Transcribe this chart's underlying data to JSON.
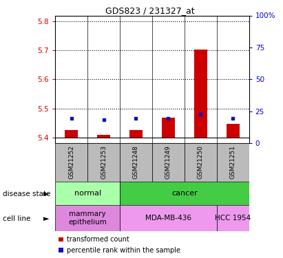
{
  "title": "GDS823 / 231327_at",
  "samples": [
    "GSM21252",
    "GSM21253",
    "GSM21248",
    "GSM21249",
    "GSM21250",
    "GSM21251"
  ],
  "transformed_counts": [
    5.425,
    5.408,
    5.425,
    5.468,
    5.703,
    5.447
  ],
  "percentile_ranks": [
    19.5,
    18.5,
    19.5,
    19.5,
    22.5,
    19.5
  ],
  "ylim_left": [
    5.38,
    5.82
  ],
  "ylim_right": [
    0,
    100
  ],
  "yticks_left": [
    5.4,
    5.5,
    5.6,
    5.7,
    5.8
  ],
  "yticks_right": [
    0,
    25,
    50,
    75,
    100
  ],
  "ytick_labels_right": [
    "0",
    "25",
    "50",
    "75",
    "100%"
  ],
  "bar_color_red": "#cc0000",
  "dot_color_blue": "#1111bb",
  "disease_state_groups": [
    {
      "label": "normal",
      "cols": [
        0,
        1
      ],
      "color": "#aaffaa"
    },
    {
      "label": "cancer",
      "cols": [
        2,
        3,
        4,
        5
      ],
      "color": "#44cc44"
    }
  ],
  "cell_line_groups": [
    {
      "label": "mammary\nepithelium",
      "cols": [
        0,
        1
      ],
      "color": "#dd88dd"
    },
    {
      "label": "MDA-MB-436",
      "cols": [
        2,
        3,
        4
      ],
      "color": "#ee99ee"
    },
    {
      "label": "HCC 1954",
      "cols": [
        5
      ],
      "color": "#ee99ee"
    }
  ],
  "legend_items": [
    {
      "color": "#cc0000",
      "label": "transformed count"
    },
    {
      "color": "#1111bb",
      "label": "percentile rank within the sample"
    }
  ],
  "left_label_color": "#cc0000",
  "right_label_color": "#0000cc",
  "bg_xtick": "#bbbbbb",
  "bar_width": 0.4
}
